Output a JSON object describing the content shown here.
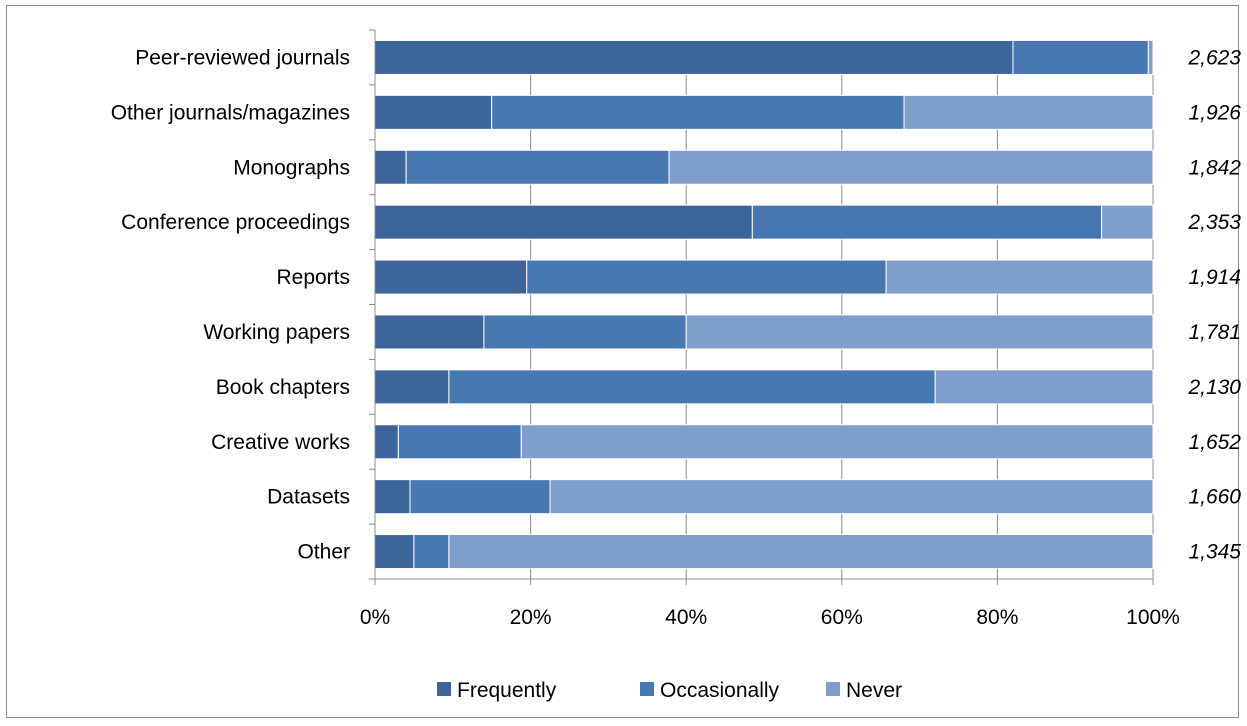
{
  "chart_data": {
    "type": "bar",
    "orientation": "horizontal",
    "stacked": "percent",
    "categories": [
      "Peer-reviewed journals",
      "Other journals/magazines",
      "Monographs",
      "Conference proceedings",
      "Reports",
      "Working papers",
      "Book chapters",
      "Creative works",
      "Datasets",
      "Other"
    ],
    "series": [
      {
        "name": "Frequently",
        "color": "#3d659a",
        "values": [
          82,
          15,
          4,
          48.5,
          19.5,
          14,
          9.5,
          3,
          4.5,
          5
        ]
      },
      {
        "name": "Occasionally",
        "color": "#4778b1",
        "values": [
          17.4,
          53,
          33.8,
          44.9,
          46.2,
          26,
          62.5,
          15.8,
          18,
          4.5
        ]
      },
      {
        "name": "Never",
        "color": "#7f9ecb",
        "values": [
          0.6,
          32,
          62.2,
          6.6,
          34.3,
          60,
          28,
          81.2,
          77.5,
          90.5
        ]
      }
    ],
    "counts": [
      "2,623",
      "1,926",
      "1,842",
      "2,353",
      "1,914",
      "1,781",
      "2,130",
      "1,652",
      "1,660",
      "1,345"
    ],
    "x_ticks": [
      "0%",
      "20%",
      "40%",
      "60%",
      "80%",
      "100%"
    ],
    "xlim": [
      0,
      100
    ],
    "grid": true,
    "legend": "bottom",
    "title": "",
    "xlabel": "",
    "ylabel": ""
  }
}
